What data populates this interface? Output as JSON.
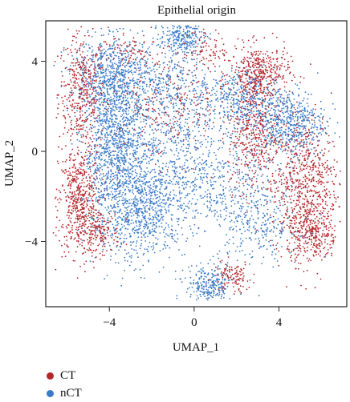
{
  "chart_data": {
    "type": "scatter",
    "title": "Epithelial origin",
    "xlabel": "UMAP_1",
    "ylabel": "UMAP_2",
    "xlim": [
      -7,
      7.2
    ],
    "ylim": [
      -6.9,
      5.8
    ],
    "xticks": [
      -4,
      0,
      4
    ],
    "yticks": [
      -4,
      0,
      4
    ],
    "grid": false,
    "legend_position": "bottom-left",
    "series": [
      {
        "name": "CT",
        "color": "#b5262b",
        "clusters": [
          {
            "cx": -5.3,
            "cy": 2.6,
            "sx": 0.55,
            "sy": 1.3,
            "n": 420
          },
          {
            "cx": -5.4,
            "cy": -2.2,
            "sx": 0.5,
            "sy": 1.2,
            "n": 520
          },
          {
            "cx": -4.5,
            "cy": -3.6,
            "sx": 0.5,
            "sy": 0.5,
            "n": 160
          },
          {
            "cx": 3.1,
            "cy": 3.5,
            "sx": 0.7,
            "sy": 0.6,
            "n": 380
          },
          {
            "cx": 2.8,
            "cy": 0.8,
            "sx": 0.6,
            "sy": 1.3,
            "n": 420
          },
          {
            "cx": 5.2,
            "cy": -1.5,
            "sx": 0.8,
            "sy": 1.5,
            "n": 720
          },
          {
            "cx": 5.6,
            "cy": -3.8,
            "sx": 0.6,
            "sy": 0.6,
            "n": 260
          },
          {
            "cx": 1.8,
            "cy": -5.6,
            "sx": 0.45,
            "sy": 0.35,
            "n": 110
          },
          {
            "cx": -1.2,
            "cy": 2.2,
            "sx": 1.6,
            "sy": 1.3,
            "n": 280
          },
          {
            "cx": 0.8,
            "cy": 4.5,
            "sx": 0.5,
            "sy": 0.4,
            "n": 70
          },
          {
            "cx": -3.3,
            "cy": 4.5,
            "sx": 0.7,
            "sy": 0.5,
            "n": 80
          }
        ]
      },
      {
        "name": "nCT",
        "color": "#3a7bc8",
        "clusters": [
          {
            "cx": -3.6,
            "cy": 0.2,
            "sx": 0.8,
            "sy": 2.1,
            "n": 1500
          },
          {
            "cx": -3.9,
            "cy": 3.4,
            "sx": 1.0,
            "sy": 0.8,
            "n": 520
          },
          {
            "cx": -2.2,
            "cy": -2.6,
            "sx": 0.9,
            "sy": 1.1,
            "n": 560
          },
          {
            "cx": -0.6,
            "cy": 5.1,
            "sx": 0.5,
            "sy": 0.35,
            "n": 240
          },
          {
            "cx": -1.0,
            "cy": 3.2,
            "sx": 0.8,
            "sy": 0.8,
            "n": 260
          },
          {
            "cx": 2.0,
            "cy": 2.3,
            "sx": 0.9,
            "sy": 0.7,
            "n": 400
          },
          {
            "cx": 4.4,
            "cy": 1.3,
            "sx": 0.9,
            "sy": 0.8,
            "n": 600
          },
          {
            "cx": 0.5,
            "cy": -1.3,
            "sx": 1.7,
            "sy": 1.2,
            "n": 600
          },
          {
            "cx": 3.0,
            "cy": -3.3,
            "sx": 1.0,
            "sy": 0.8,
            "n": 260
          },
          {
            "cx": 0.7,
            "cy": -6.0,
            "sx": 0.55,
            "sy": 0.45,
            "n": 260
          },
          {
            "cx": -0.8,
            "cy": 0.7,
            "sx": 0.8,
            "sy": 0.9,
            "n": 200
          }
        ]
      }
    ],
    "legend": [
      {
        "label": "CT",
        "color": "#b5262b"
      },
      {
        "label": "nCT",
        "color": "#3a7bc8"
      }
    ]
  }
}
